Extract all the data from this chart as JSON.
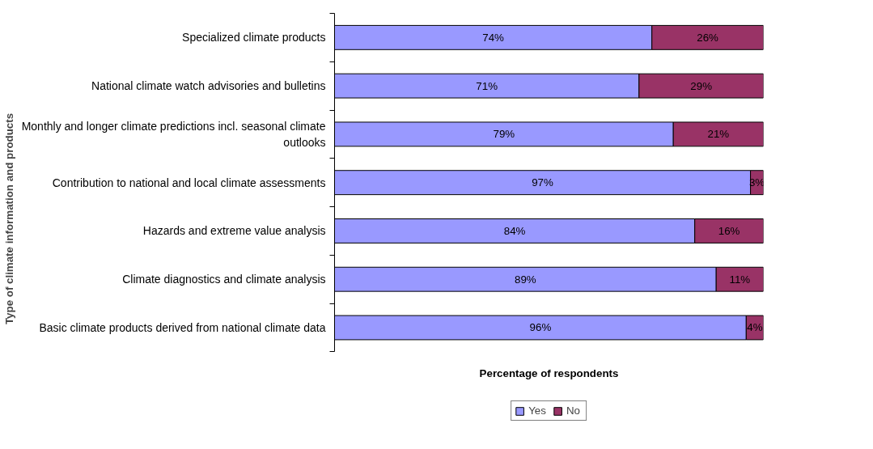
{
  "chart_data": {
    "type": "bar",
    "orientation": "horizontal",
    "stacked": true,
    "xlabel": "Percentage of respondents",
    "ylabel": "Type of climate information and products",
    "categories": [
      "Specialized climate products",
      "National climate watch advisories and bulletins",
      "Monthly and longer climate predictions incl. seasonal climate\noutlooks",
      "Contribution to national and local climate assessments",
      "Hazards and extreme value analysis",
      "Climate diagnostics and climate analysis",
      "Basic climate products derived from national climate data"
    ],
    "series": [
      {
        "name": "Yes",
        "color": "#9999ff",
        "values": [
          74,
          71,
          79,
          97,
          84,
          89,
          96
        ],
        "value_labels": [
          "74%",
          "71%",
          "79%",
          "97%",
          "84%",
          "89%",
          "96%"
        ]
      },
      {
        "name": "No",
        "color": "#993366",
        "values": [
          26,
          29,
          21,
          3,
          16,
          11,
          4
        ],
        "value_labels": [
          "26%",
          "29%",
          "21%",
          "3%",
          "16%",
          "11%",
          "4%"
        ]
      }
    ],
    "xlim": [
      0,
      100
    ],
    "tick_labels": "y",
    "legend": "bottom"
  }
}
